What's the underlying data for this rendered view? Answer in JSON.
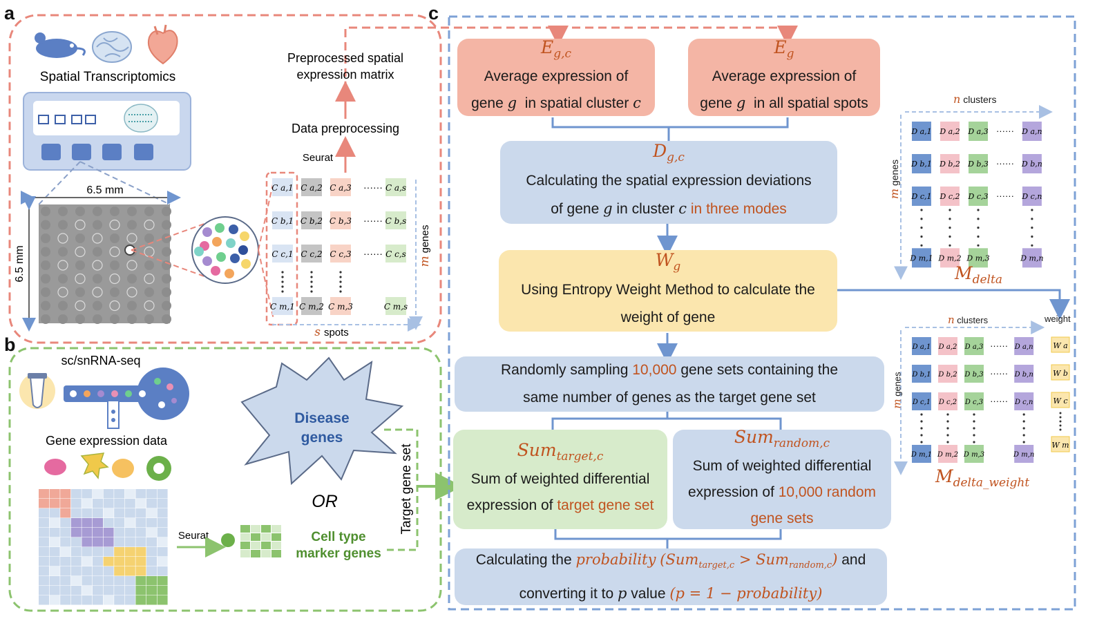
{
  "panels": {
    "a": "a",
    "b": "b",
    "c": "c"
  },
  "panel_a": {
    "title": "Spatial Transcriptomics",
    "width_label": "6.5 mm",
    "height_label": "6.5 mm",
    "matrix_title_1": "Preprocessed spatial",
    "matrix_title_2": "expression matrix",
    "preprocessing": "Data preprocessing",
    "tool": "Seurat",
    "rows_label_sym": "m",
    "rows_label": "genes",
    "cols_label_sym": "s",
    "cols_label": "spots",
    "matrix_cells": [
      [
        "C a,1",
        "C a,2",
        "C a,3",
        "C a,s"
      ],
      [
        "C b,1",
        "C b,2",
        "C b,3",
        "C b,s"
      ],
      [
        "C c,1",
        "C c,2",
        "C c,3",
        "C c,s"
      ],
      [
        "C m,1",
        "C m,2",
        "C m,3",
        "C m,s"
      ]
    ]
  },
  "panel_b": {
    "title": "sc/snRNA-seq",
    "expr_label": "Gene expression data",
    "tool": "Seurat",
    "disease_1": "Disease",
    "disease_2": "genes",
    "or": "OR",
    "marker_1": "Cell type",
    "marker_2": "marker genes",
    "target": "Target gene set"
  },
  "panel_c": {
    "egc": {
      "sym": "E",
      "sub": "g,c",
      "line1": "Average expression of",
      "line2_a": "gene",
      "g": "g",
      "line2_b": "in spatial cluster",
      "c": "c"
    },
    "eg": {
      "sym": "E",
      "sub": "g",
      "line1": "Average expression of",
      "line2_a": "gene",
      "g": "g",
      "line2_b": "in all spatial spots"
    },
    "dgc": {
      "sym": "D",
      "sub": "g,c",
      "line1": "Calculating the spatial expression deviations",
      "line2_a": "of gene",
      "g": "g",
      "line2_b": "in cluster",
      "c": "c",
      "line2_hl": "in three modes"
    },
    "wg": {
      "sym": "W",
      "sub": "g",
      "line1": "Using Entropy Weight Method to calculate the",
      "line2": "weight of gene"
    },
    "sampling": {
      "line1_a": "Randomly sampling",
      "line1_hl": "10,000",
      "line1_b": "gene sets containing the",
      "line2": "same number of genes as the target gene set"
    },
    "sum_target": {
      "sym": "Sum",
      "sub": "target,c",
      "line1": "Sum of weighted differential",
      "line2_a": "expression of",
      "line2_hl": "target gene set"
    },
    "sum_random": {
      "sym": "Sum",
      "sub": "random,c",
      "line1": "Sum of weighted differential",
      "line2_a": "expression of",
      "line2_hl": "10,000 random",
      "line3": "gene sets"
    },
    "final": {
      "line1_a": "Calculating the",
      "prob": "probability",
      "line1_b": "and",
      "line2_a": "converting it to",
      "p": "p",
      "line2_b": "value",
      "formula": "(p = 1 − probability)",
      "sum_t": "Sum",
      "sum_t_sub": "target,c",
      "sum_r": "Sum",
      "sum_r_sub": "random,c"
    },
    "mdelta": {
      "cols_sym": "n",
      "cols": "clusters",
      "rows_sym": "m",
      "rows": "genes",
      "label": "M",
      "label_sub": "delta",
      "cells": [
        [
          "D a,1",
          "D a,2",
          "D a,3",
          "D a,n"
        ],
        [
          "D b,1",
          "D b,2",
          "D b,3",
          "D b,n"
        ],
        [
          "D c,1",
          "D c,2",
          "D c,3",
          "D c,n"
        ],
        [
          "D m,1",
          "D m,2",
          "D m,3",
          "D m,n"
        ]
      ]
    },
    "mweight": {
      "cols_sym": "n",
      "cols": "clusters",
      "rows_sym": "m",
      "rows": "genes",
      "weight": "weight",
      "label": "M",
      "label_sub": "delta_weight",
      "cells": [
        [
          "D a,1",
          "D a,2",
          "D a,3",
          "D a,n"
        ],
        [
          "D b,1",
          "D b,2",
          "D b,3",
          "D b,n"
        ],
        [
          "D c,1",
          "D c,2",
          "D c,3",
          "D c,n"
        ],
        [
          "D m,1",
          "D m,2",
          "D m,3",
          "D m,n"
        ]
      ],
      "weights": [
        "W a",
        "W b",
        "W c",
        "W m"
      ]
    }
  },
  "colors": {
    "red": "#e8877b",
    "green": "#8cc36e",
    "blue": "#7da1d6",
    "orange_text": "#c0531f",
    "box_red": "#f4b5a5",
    "box_blue": "#cbd9ec",
    "box_yellow": "#fbe6ae",
    "box_green": "#d7ebcb"
  }
}
